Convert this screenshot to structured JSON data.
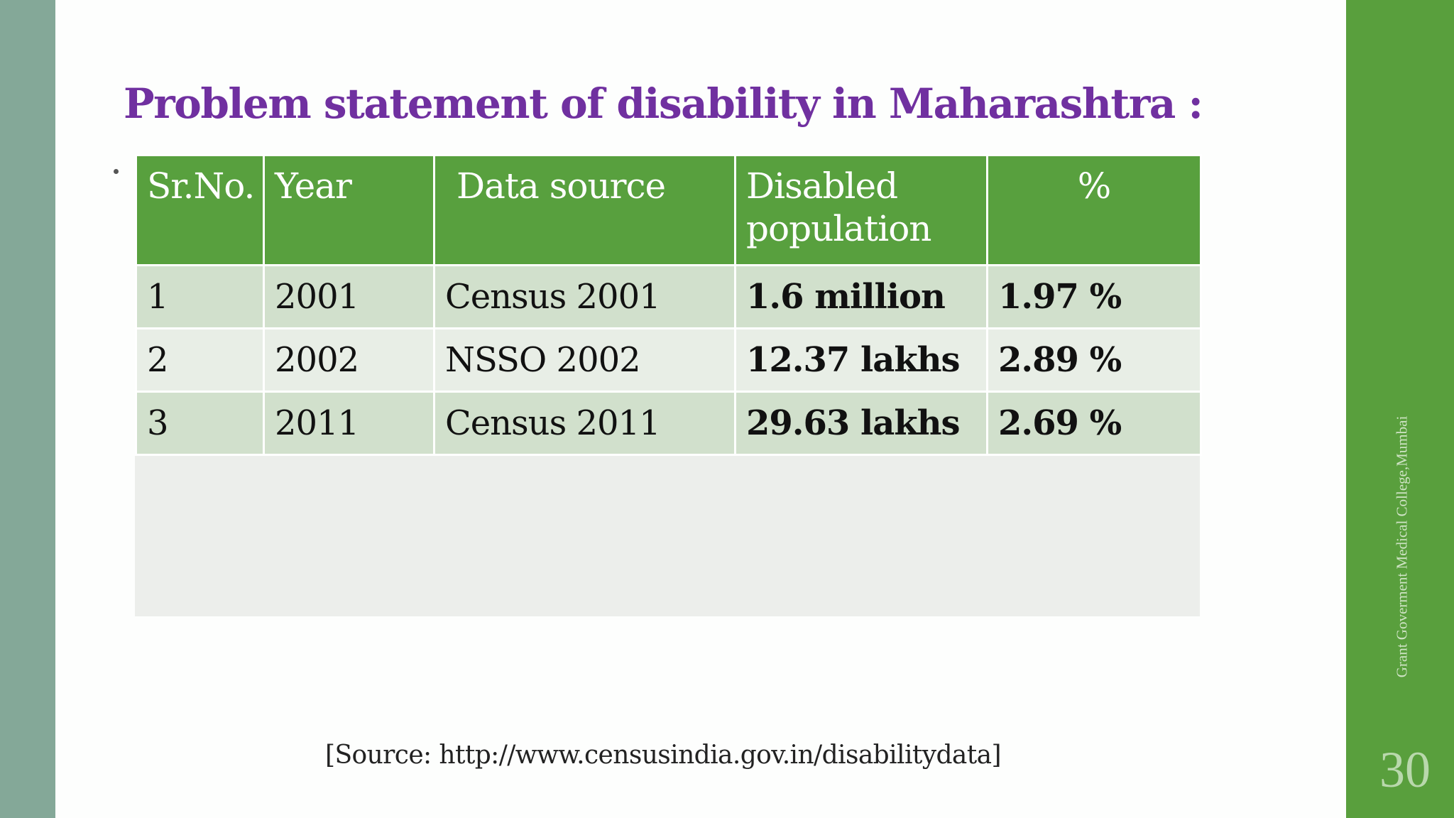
{
  "slide": {
    "title": "Problem statement of  disability in Maharashtra :",
    "source": "[Source: http://www.censusindia.gov.in/disabilitydata]",
    "footer": "Grant Goverment Medical College,Mumbai",
    "page_number": "30"
  },
  "table": {
    "headers": [
      "Sr.No.",
      "Year",
      "Data source",
      "Disabled population",
      "%"
    ],
    "rows": [
      [
        "1",
        "2001",
        "Census 2001",
        "1.6 million",
        "1.97 %"
      ],
      [
        "2",
        "2002",
        "NSSO 2002",
        "12.37 lakhs",
        "2.89 %"
      ],
      [
        "3",
        "2011",
        "Census 2011",
        "29.63 lakhs",
        "2.69 %"
      ]
    ]
  },
  "colors": {
    "title": "#7030a0",
    "header_fill": "#58a03e",
    "row_odd": "#d1e0cc",
    "row_even": "#e8eee6",
    "left_bar": "#84a898",
    "right_panel": "#599f3d"
  }
}
